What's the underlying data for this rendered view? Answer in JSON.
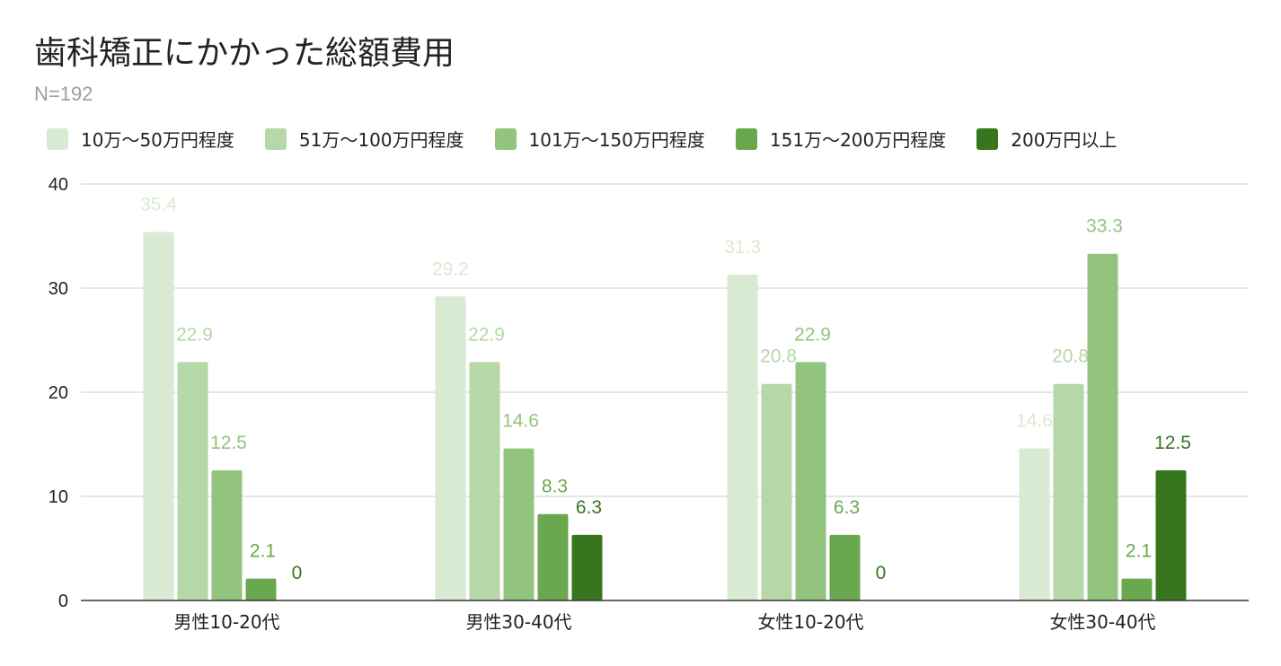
{
  "title": "歯科矯正にかかった総額費用",
  "subtitle": "N=192",
  "chart_data": {
    "type": "bar",
    "title": "歯科矯正にかかった総額費用",
    "subtitle": "N=192",
    "categories": [
      "男性10-20代",
      "男性30-40代",
      "女性10-20代",
      "女性30-40代"
    ],
    "series": [
      {
        "name": "10万～50万円程度",
        "color": "#d9ead3",
        "label_color": "#d9ead3",
        "values": [
          35.4,
          29.2,
          31.3,
          14.6
        ]
      },
      {
        "name": "51万～100万円程度",
        "color": "#b6d7a8",
        "label_color": "#b6d7a8",
        "values": [
          22.9,
          22.9,
          20.8,
          20.8
        ]
      },
      {
        "name": "101万～150万円程度",
        "color": "#93c47d",
        "label_color": "#93c47d",
        "values": [
          12.5,
          14.6,
          22.9,
          33.3
        ]
      },
      {
        "name": "151万～200万円程度",
        "color": "#6aa84f",
        "label_color": "#6aa84f",
        "values": [
          2.1,
          8.3,
          6.3,
          2.1
        ]
      },
      {
        "name": "200万円以上",
        "color": "#38761d",
        "label_color": "#38761d",
        "values": [
          0,
          6.3,
          0,
          12.5
        ]
      }
    ],
    "ylim": [
      0,
      40
    ],
    "yticks": [
      0,
      10,
      20,
      30,
      40
    ],
    "grid": true,
    "legend": "top",
    "xlabel": "",
    "ylabel": ""
  }
}
